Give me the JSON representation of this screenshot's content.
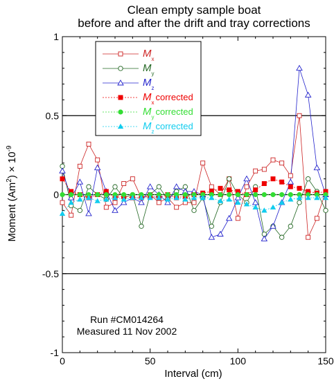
{
  "chart_data": {
    "type": "line",
    "title": "Clean empty sample boat",
    "subtitle": "before and after the drift and tray corrections",
    "xlabel": "Interval (cm)",
    "ylabel_main": "Moment (Am",
    "ylabel_sup": "2",
    "ylabel_rest": ") × 10",
    "ylabel_exp": "-9",
    "xlim": [
      0,
      150
    ],
    "ylim": [
      -1,
      1
    ],
    "xticks": [
      0,
      50,
      100,
      150
    ],
    "yticks": [
      -1,
      -0.5,
      0,
      0.5,
      1
    ],
    "ytick_labels": [
      "-1",
      "-0.5",
      "0",
      "0.5",
      "1"
    ],
    "reference_lines": [
      -0.5,
      0,
      0.5
    ],
    "annotation": [
      "Run #CM014264",
      "Measured 11 Nov 2002"
    ],
    "legend": {
      "placement": "upper-left",
      "entries": [
        {
          "symbol": "M",
          "sub": "x",
          "suffix": ""
        },
        {
          "symbol": "M",
          "sub": "y",
          "suffix": ""
        },
        {
          "symbol": "M",
          "sub": "z",
          "suffix": ""
        },
        {
          "symbol": "M",
          "sub": "x",
          "suffix": "corrected"
        },
        {
          "symbol": "M",
          "sub": "y",
          "suffix": "corrected"
        },
        {
          "symbol": "M",
          "sub": "z",
          "suffix": "corrected"
        }
      ]
    },
    "x": [
      0,
      5,
      10,
      15,
      20,
      25,
      30,
      35,
      40,
      45,
      50,
      55,
      60,
      65,
      70,
      75,
      80,
      85,
      90,
      95,
      100,
      105,
      110,
      115,
      120,
      125,
      130,
      135,
      140,
      145,
      150
    ],
    "series": [
      {
        "color": "#cc2222",
        "marker": "open-square",
        "values": [
          -0.05,
          -0.13,
          0.18,
          0.32,
          0.22,
          -0.08,
          -0.05,
          0.07,
          0.1,
          -0.02,
          0.0,
          -0.05,
          -0.02,
          -0.08,
          -0.05,
          -0.05,
          0.2,
          0.05,
          0.0,
          0.1,
          -0.15,
          0.05,
          0.15,
          0.16,
          0.22,
          0.2,
          0.12,
          0.5,
          -0.27,
          -0.15,
          0.02
        ]
      },
      {
        "color": "#226622",
        "marker": "open-circle",
        "values": [
          0.18,
          -0.07,
          -0.1,
          0.05,
          0.0,
          -0.03,
          0.05,
          -0.02,
          0.0,
          -0.2,
          0.0,
          0.05,
          -0.03,
          0.02,
          0.05,
          -0.1,
          -0.02,
          -0.2,
          -0.05,
          0.1,
          0.0,
          -0.05,
          0.05,
          -0.25,
          -0.2,
          -0.27,
          -0.2,
          -0.05,
          0.1,
          0.02,
          -0.1
        ]
      },
      {
        "color": "#2222cc",
        "marker": "open-triangle",
        "values": [
          0.15,
          -0.02,
          0.08,
          -0.12,
          0.17,
          0.02,
          -0.1,
          -0.05,
          -0.02,
          -0.05,
          0.05,
          0.0,
          -0.05,
          0.05,
          0.02,
          0.02,
          0.0,
          -0.27,
          -0.25,
          -0.15,
          -0.02,
          0.1,
          -0.05,
          -0.28,
          -0.2,
          -0.05,
          0.08,
          0.8,
          0.63,
          0.17,
          0.0
        ]
      },
      {
        "color": "#ee0000",
        "marker": "filled-square",
        "values": [
          0.1,
          0.02,
          0.0,
          -0.02,
          0.0,
          0.02,
          -0.02,
          -0.01,
          -0.02,
          -0.02,
          -0.01,
          -0.02,
          0.0,
          -0.02,
          -0.01,
          0.0,
          0.01,
          0.02,
          0.04,
          0.03,
          0.02,
          0.0,
          0.03,
          0.07,
          0.1,
          0.08,
          0.05,
          0.04,
          0.02,
          0.01,
          0.02
        ]
      },
      {
        "color": "#33dd33",
        "marker": "filled-circle",
        "values": [
          0.0,
          0.0,
          0.0,
          0.0,
          0.0,
          0.0,
          0.0,
          0.0,
          0.0,
          0.0,
          0.0,
          0.0,
          0.0,
          0.0,
          0.0,
          0.0,
          0.0,
          0.0,
          0.0,
          0.0,
          0.0,
          0.0,
          0.0,
          0.0,
          0.0,
          0.0,
          0.0,
          0.0,
          0.0,
          0.0,
          0.0
        ]
      },
      {
        "color": "#11ccee",
        "marker": "filled-triangle",
        "values": [
          -0.12,
          -0.05,
          -0.03,
          -0.02,
          -0.04,
          -0.03,
          -0.02,
          -0.03,
          -0.02,
          -0.02,
          -0.02,
          -0.02,
          -0.03,
          -0.02,
          -0.03,
          -0.02,
          -0.02,
          -0.02,
          -0.04,
          -0.03,
          -0.05,
          -0.06,
          -0.08,
          -0.1,
          -0.08,
          -0.05,
          -0.03,
          -0.02,
          -0.02,
          -0.02,
          -0.02
        ]
      }
    ]
  }
}
